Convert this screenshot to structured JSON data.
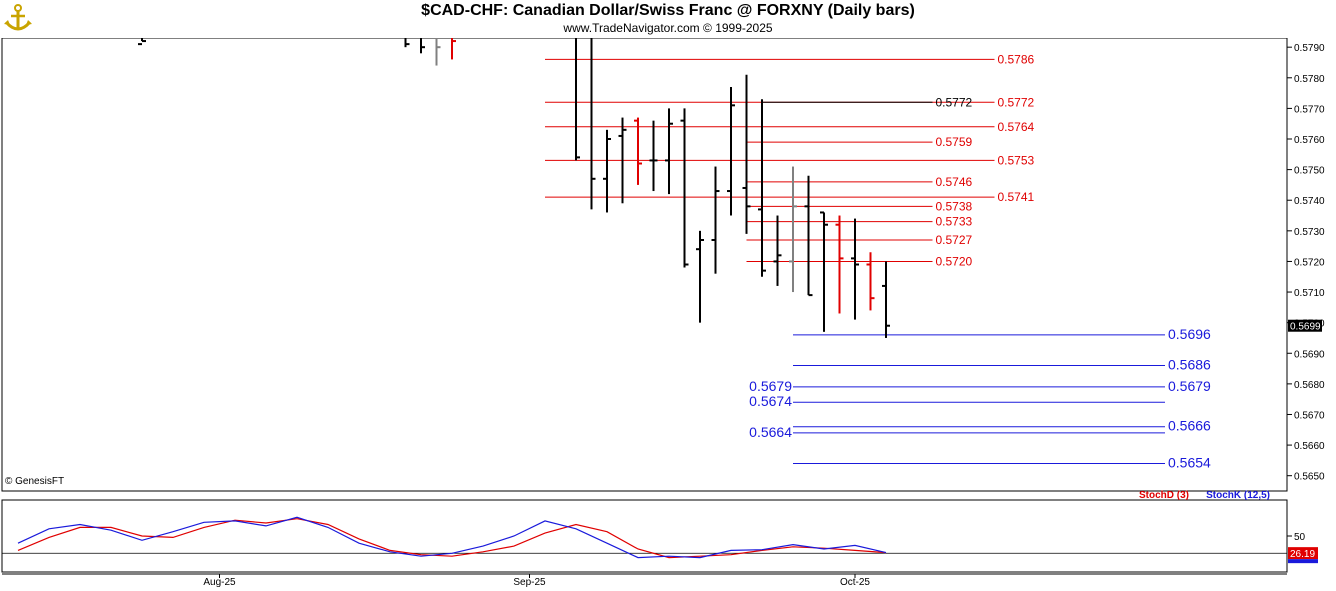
{
  "header": {
    "title": "$CAD-CHF:  Canadian Dollar/Swiss Franc @ FORXNY  (Daily bars)",
    "subtitle": "www.TradeNavigator.com © 1999-2025",
    "copyright": "© GenesisFT",
    "logo_icon": "anchor-logo-icon"
  },
  "colors": {
    "bar": "#000000",
    "red": "#e00000",
    "gray": "#808080",
    "blue": "#1a1adb"
  },
  "chart_data": [
    {
      "type": "ohlc",
      "title": "$CAD-CHF:  Canadian Dollar/Swiss Franc @ FORXNY  (Daily bars)",
      "ylim": [
        0.5645,
        0.5793
      ],
      "y_ticks": [
        "0.5790",
        "0.5780",
        "0.5770",
        "0.5760",
        "0.5750",
        "0.5740",
        "0.5730",
        "0.5720",
        "0.5710",
        "0.5700",
        "0.5690",
        "0.5680",
        "0.5670",
        "0.5660",
        "0.5650"
      ],
      "x_labels": [
        {
          "label": "Aug-25",
          "bar": 13
        },
        {
          "label": "Sep-25",
          "bar": 33
        },
        {
          "label": "Oct-25",
          "bar": 54
        }
      ],
      "last_price": "0.5699",
      "bars": [
        {
          "i": 8,
          "o": 0.5791,
          "h": 0.5793,
          "l": 0.5792,
          "c": 0.5792,
          "color": "black"
        },
        {
          "i": 25,
          "o": 0.5795,
          "h": 0.5797,
          "l": 0.579,
          "c": 0.5791,
          "color": "black"
        },
        {
          "i": 26,
          "o": 0.5795,
          "h": 0.5797,
          "l": 0.5788,
          "c": 0.579,
          "color": "black"
        },
        {
          "i": 27,
          "o": 0.5795,
          "h": 0.5798,
          "l": 0.5784,
          "c": 0.579,
          "color": "gray"
        },
        {
          "i": 28,
          "o": 0.5794,
          "h": 0.5797,
          "l": 0.5786,
          "c": 0.5792,
          "color": "red"
        },
        {
          "i": 36,
          "o": 0.5795,
          "h": 0.5797,
          "l": 0.5753,
          "c": 0.5754,
          "color": "black"
        },
        {
          "i": 37,
          "o": 0.5795,
          "h": 0.5796,
          "l": 0.5737,
          "c": 0.5747,
          "color": "black"
        },
        {
          "i": 38,
          "o": 0.5747,
          "h": 0.5763,
          "l": 0.5736,
          "c": 0.576,
          "color": "black"
        },
        {
          "i": 39,
          "o": 0.5761,
          "h": 0.5767,
          "l": 0.5739,
          "c": 0.5763,
          "color": "black"
        },
        {
          "i": 40,
          "o": 0.5766,
          "h": 0.5767,
          "l": 0.5745,
          "c": 0.5752,
          "color": "red"
        },
        {
          "i": 41,
          "o": 0.5753,
          "h": 0.5766,
          "l": 0.5743,
          "c": 0.5753,
          "color": "black"
        },
        {
          "i": 42,
          "o": 0.5753,
          "h": 0.577,
          "l": 0.5742,
          "c": 0.5765,
          "color": "black"
        },
        {
          "i": 43,
          "o": 0.5766,
          "h": 0.577,
          "l": 0.5718,
          "c": 0.5719,
          "color": "black"
        },
        {
          "i": 44,
          "o": 0.5724,
          "h": 0.573,
          "l": 0.57,
          "c": 0.5727,
          "color": "black"
        },
        {
          "i": 45,
          "o": 0.5727,
          "h": 0.5751,
          "l": 0.5716,
          "c": 0.5743,
          "color": "black"
        },
        {
          "i": 46,
          "o": 0.5743,
          "h": 0.5777,
          "l": 0.5735,
          "c": 0.5771,
          "color": "black"
        },
        {
          "i": 47,
          "o": 0.5744,
          "h": 0.5781,
          "l": 0.5729,
          "c": 0.5738,
          "color": "black"
        },
        {
          "i": 48,
          "o": 0.5737,
          "h": 0.5773,
          "l": 0.5715,
          "c": 0.5717,
          "color": "black"
        },
        {
          "i": 49,
          "o": 0.572,
          "h": 0.5735,
          "l": 0.5712,
          "c": 0.5722,
          "color": "black"
        },
        {
          "i": 50,
          "o": 0.572,
          "h": 0.5751,
          "l": 0.571,
          "c": 0.5738,
          "color": "gray"
        },
        {
          "i": 51,
          "o": 0.5738,
          "h": 0.5748,
          "l": 0.5709,
          "c": 0.5709,
          "color": "black"
        },
        {
          "i": 52,
          "o": 0.5736,
          "h": 0.5736,
          "l": 0.5697,
          "c": 0.5732,
          "color": "black"
        },
        {
          "i": 53,
          "o": 0.5732,
          "h": 0.5735,
          "l": 0.5703,
          "c": 0.5721,
          "color": "red"
        },
        {
          "i": 54,
          "o": 0.5721,
          "h": 0.5734,
          "l": 0.5701,
          "c": 0.5719,
          "color": "black"
        },
        {
          "i": 55,
          "o": 0.5719,
          "h": 0.5723,
          "l": 0.5704,
          "c": 0.5708,
          "color": "red"
        },
        {
          "i": 56,
          "o": 0.5712,
          "h": 0.572,
          "l": 0.5695,
          "c": 0.5699,
          "color": "black"
        }
      ],
      "levels": [
        {
          "value": 0.5786,
          "label": "0.5786",
          "color": "red",
          "from_bar": 34,
          "to_bar": 63,
          "label_side": "right"
        },
        {
          "value": 0.5772,
          "label": "0.5772",
          "color": "red",
          "from_bar": 34,
          "to_bar": 63,
          "label_side": "right"
        },
        {
          "value": 0.5772,
          "label": "0.5772",
          "color": "black",
          "from_bar": 48,
          "to_bar": 59,
          "label_side": "right"
        },
        {
          "value": 0.5764,
          "label": "0.5764",
          "color": "red",
          "from_bar": 34,
          "to_bar": 63,
          "label_side": "right"
        },
        {
          "value": 0.5759,
          "label": "0.5759",
          "color": "red",
          "from_bar": 47,
          "to_bar": 59,
          "label_side": "right"
        },
        {
          "value": 0.5753,
          "label": "0.5753",
          "color": "red",
          "from_bar": 34,
          "to_bar": 63,
          "label_side": "right"
        },
        {
          "value": 0.5746,
          "label": "0.5746",
          "color": "red",
          "from_bar": 47,
          "to_bar": 59,
          "label_side": "right"
        },
        {
          "value": 0.5741,
          "label": "0.5741",
          "color": "red",
          "from_bar": 34,
          "to_bar": 63,
          "label_side": "right"
        },
        {
          "value": 0.5738,
          "label": "0.5738",
          "color": "red",
          "from_bar": 47,
          "to_bar": 59,
          "label_side": "right"
        },
        {
          "value": 0.5733,
          "label": "0.5733",
          "color": "red",
          "from_bar": 47,
          "to_bar": 59,
          "label_side": "right"
        },
        {
          "value": 0.5727,
          "label": "0.5727",
          "color": "red",
          "from_bar": 47,
          "to_bar": 59,
          "label_side": "right"
        },
        {
          "value": 0.572,
          "label": "0.5720",
          "color": "red",
          "from_bar": 47,
          "to_bar": 59,
          "label_side": "right"
        },
        {
          "value": 0.5696,
          "label": "0.5696",
          "color": "blue",
          "from_bar": 50,
          "to_bar": 74,
          "label_side": "right"
        },
        {
          "value": 0.5686,
          "label": "0.5686",
          "color": "blue",
          "from_bar": 50,
          "to_bar": 74,
          "label_side": "right"
        },
        {
          "value": 0.5679,
          "label": "0.5679",
          "color": "blue",
          "from_bar": 50,
          "to_bar": 74,
          "label_side": "right"
        },
        {
          "value": 0.5679,
          "label": "0.5679",
          "color": "blue",
          "from_bar": 50,
          "to_bar": 50,
          "label_side": "left"
        },
        {
          "value": 0.5674,
          "label": "0.5674",
          "color": "blue",
          "from_bar": 50,
          "to_bar": 74,
          "label_side": "left"
        },
        {
          "value": 0.5666,
          "label": "0.5666",
          "color": "blue",
          "from_bar": 50,
          "to_bar": 74,
          "label_side": "right"
        },
        {
          "value": 0.5664,
          "label": "0.5664",
          "color": "blue",
          "from_bar": 50,
          "to_bar": 74,
          "label_side": "left"
        },
        {
          "value": 0.5654,
          "label": "0.5654",
          "color": "blue",
          "from_bar": 50,
          "to_bar": 74,
          "label_side": "right"
        }
      ]
    },
    {
      "type": "line",
      "ylim": [
        0,
        100
      ],
      "y_ticks": [
        "50"
      ],
      "reference_line": 26,
      "last_value": "26.19",
      "series": [
        {
          "name": "StochD (3)",
          "color": "red",
          "x": [
            0,
            2,
            4,
            6,
            8,
            10,
            12,
            14,
            16,
            18,
            20,
            22,
            24,
            26,
            28,
            30,
            32,
            34,
            36,
            38,
            40,
            42,
            44,
            46,
            48,
            50,
            52,
            54,
            56
          ],
          "values": [
            30,
            48,
            62,
            62,
            50,
            48,
            62,
            72,
            68,
            74,
            66,
            46,
            30,
            24,
            22,
            28,
            36,
            54,
            66,
            56,
            32,
            20,
            22,
            24,
            30,
            35,
            33,
            30,
            27
          ]
        },
        {
          "name": "StochK (12,5)",
          "color": "blue",
          "x": [
            0,
            2,
            4,
            6,
            8,
            10,
            12,
            14,
            16,
            18,
            20,
            22,
            24,
            26,
            28,
            30,
            32,
            34,
            36,
            38,
            40,
            42,
            44,
            46,
            48,
            50,
            52,
            54,
            56
          ],
          "values": [
            40,
            60,
            66,
            58,
            44,
            56,
            69,
            71,
            64,
            76,
            62,
            40,
            28,
            22,
            26,
            36,
            50,
            71,
            60,
            40,
            20,
            22,
            20,
            30,
            31,
            38,
            32,
            37,
            27
          ]
        }
      ]
    }
  ]
}
